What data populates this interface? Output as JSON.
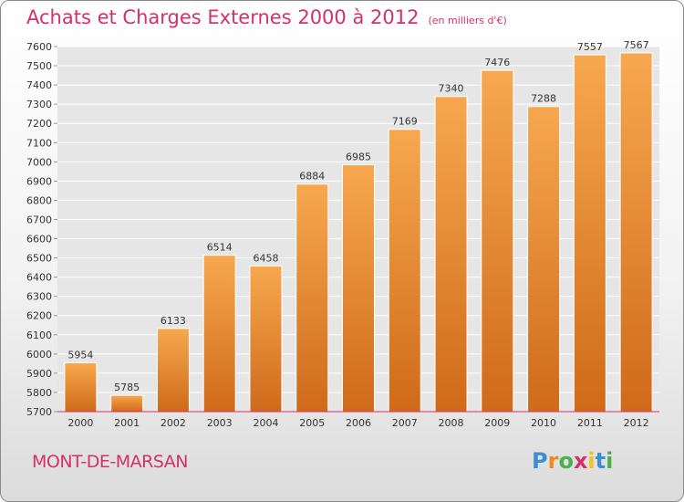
{
  "header": {
    "title": "Achats et Charges Externes 2000 à 2012",
    "unit": "(en milliers d'€)"
  },
  "footer": {
    "city": "MONT-DE-MARSAN",
    "logo": "Proxiti"
  },
  "colors": {
    "title": "#d4306a",
    "bar_light": "#f7a84f",
    "bar_dark": "#cf6a1a",
    "grid": "#ffffff",
    "plot_bg": "#e6e6e6"
  },
  "chart_data": {
    "type": "bar",
    "title": "Achats et Charges Externes 2000 à 2012",
    "subtitle": "(en milliers d'€)",
    "xlabel": "",
    "ylabel": "",
    "categories": [
      "2000",
      "2001",
      "2002",
      "2003",
      "2004",
      "2005",
      "2006",
      "2007",
      "2008",
      "2009",
      "2010",
      "2011",
      "2012"
    ],
    "values": [
      5954,
      5785,
      6133,
      6514,
      6458,
      6884,
      6985,
      7169,
      7340,
      7476,
      7288,
      7557,
      7567
    ],
    "ylim": [
      5700,
      7600
    ],
    "yticks": [
      5700,
      5800,
      5900,
      6000,
      6100,
      6200,
      6300,
      6400,
      6500,
      6600,
      6700,
      6800,
      6900,
      7000,
      7100,
      7200,
      7300,
      7400,
      7500,
      7600
    ],
    "grid": true,
    "data_labels": true
  }
}
